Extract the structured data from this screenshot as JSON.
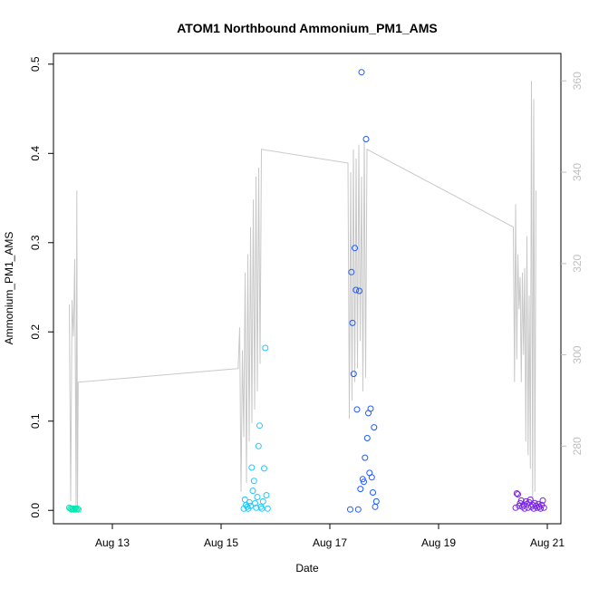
{
  "chart_data": {
    "type": "scatter",
    "title": "ATOM1 Northbound Ammonium_PM1_AMS",
    "xlabel": "Date",
    "ylabel": "Ammonium_PM1_AMS",
    "xlim": [
      "2016-08-11T22:00",
      "2016-08-21T06:00"
    ],
    "ylim": [
      -0.015,
      0.512
    ],
    "x_ticks": [
      {
        "label": "Aug 13",
        "date": "2016-08-13"
      },
      {
        "label": "Aug 15",
        "date": "2016-08-15"
      },
      {
        "label": "Aug 17",
        "date": "2016-08-17"
      },
      {
        "label": "Aug 19",
        "date": "2016-08-19"
      },
      {
        "label": "Aug 21",
        "date": "2016-08-21"
      }
    ],
    "y_ticks": [
      0.0,
      0.1,
      0.2,
      0.3,
      0.4,
      0.5
    ],
    "y_tick_labels": [
      "0.0",
      "0.1",
      "0.2",
      "0.3",
      "0.4",
      "0.5"
    ],
    "y2lim": [
      263,
      366
    ],
    "y2_ticks": [
      280,
      300,
      320,
      340,
      360
    ],
    "y2_tick_labels": [
      "280",
      "300",
      "320",
      "340",
      "360"
    ],
    "grid": false,
    "legend": "none",
    "series": [
      {
        "color": "#00e8b0",
        "points": [
          [
            "2016-08-12T05:00",
            0.003
          ],
          [
            "2016-08-12T05:30",
            0.002
          ],
          [
            "2016-08-12T06:00",
            0.001
          ],
          [
            "2016-08-12T06:30",
            0.002
          ],
          [
            "2016-08-12T07:00",
            0.001
          ],
          [
            "2016-08-12T07:30",
            0.002
          ],
          [
            "2016-08-12T08:00",
            0.001
          ],
          [
            "2016-08-12T08:30",
            0.002
          ],
          [
            "2016-08-12T09:00",
            0.001
          ]
        ]
      },
      {
        "color": "#1ec8ff",
        "points": [
          [
            "2016-08-15T10:00",
            0.002
          ],
          [
            "2016-08-15T10:30",
            0.012
          ],
          [
            "2016-08-15T11:00",
            0.006
          ],
          [
            "2016-08-15T11:30",
            0.004
          ],
          [
            "2016-08-15T12:00",
            0.002
          ],
          [
            "2016-08-15T12:30",
            0.009
          ],
          [
            "2016-08-15T13:00",
            0.005
          ],
          [
            "2016-08-15T13:30",
            0.048
          ],
          [
            "2016-08-15T14:00",
            0.022
          ],
          [
            "2016-08-15T14:30",
            0.033
          ],
          [
            "2016-08-15T15:00",
            0.008
          ],
          [
            "2016-08-15T15:30",
            0.003
          ],
          [
            "2016-08-15T16:00",
            0.015
          ],
          [
            "2016-08-15T16:30",
            0.072
          ],
          [
            "2016-08-15T17:00",
            0.095
          ],
          [
            "2016-08-15T17:30",
            0.004
          ],
          [
            "2016-08-15T18:00",
            0.002
          ],
          [
            "2016-08-15T18:30",
            0.01
          ],
          [
            "2016-08-15T19:00",
            0.047
          ],
          [
            "2016-08-15T19:30",
            0.182
          ],
          [
            "2016-08-15T20:00",
            0.017
          ],
          [
            "2016-08-15T20:30",
            0.002
          ]
        ]
      },
      {
        "color": "#1e5aff",
        "points": [
          [
            "2016-08-17T09:00",
            0.001
          ],
          [
            "2016-08-17T09:30",
            0.267
          ],
          [
            "2016-08-17T10:00",
            0.21
          ],
          [
            "2016-08-17T10:30",
            0.153
          ],
          [
            "2016-08-17T11:00",
            0.294
          ],
          [
            "2016-08-17T11:30",
            0.247
          ],
          [
            "2016-08-17T12:00",
            0.113
          ],
          [
            "2016-08-17T12:30",
            0.001
          ],
          [
            "2016-08-17T13:00",
            0.246
          ],
          [
            "2016-08-17T13:30",
            0.024
          ],
          [
            "2016-08-17T14:00",
            0.491
          ],
          [
            "2016-08-17T14:30",
            0.035
          ],
          [
            "2016-08-17T15:00",
            0.032
          ],
          [
            "2016-08-17T15:30",
            0.059
          ],
          [
            "2016-08-17T16:00",
            0.416
          ],
          [
            "2016-08-17T16:30",
            0.081
          ],
          [
            "2016-08-17T17:00",
            0.109
          ],
          [
            "2016-08-17T17:30",
            0.042
          ],
          [
            "2016-08-17T18:00",
            0.114
          ],
          [
            "2016-08-17T18:30",
            0.037
          ],
          [
            "2016-08-17T19:00",
            0.02
          ],
          [
            "2016-08-17T19:30",
            0.093
          ],
          [
            "2016-08-17T20:00",
            0.004
          ],
          [
            "2016-08-17T20:30",
            0.01
          ]
        ]
      },
      {
        "color": "#7a22e8",
        "points": [
          [
            "2016-08-20T10:00",
            0.003
          ],
          [
            "2016-08-20T10:30",
            0.019
          ],
          [
            "2016-08-20T11:00",
            0.018
          ],
          [
            "2016-08-20T11:30",
            0.005
          ],
          [
            "2016-08-20T12:00",
            0.008
          ],
          [
            "2016-08-20T12:30",
            0.011
          ],
          [
            "2016-08-20T13:00",
            0.004
          ],
          [
            "2016-08-20T13:30",
            0.006
          ],
          [
            "2016-08-20T14:00",
            0.002
          ],
          [
            "2016-08-20T14:30",
            0.01
          ],
          [
            "2016-08-20T15:00",
            0.007
          ],
          [
            "2016-08-20T15:30",
            0.003
          ],
          [
            "2016-08-20T16:00",
            0.009
          ],
          [
            "2016-08-20T16:30",
            0.012
          ],
          [
            "2016-08-20T17:00",
            0.004
          ],
          [
            "2016-08-20T17:30",
            0.006
          ],
          [
            "2016-08-20T18:00",
            0.002
          ],
          [
            "2016-08-20T18:30",
            0.008
          ],
          [
            "2016-08-20T19:00",
            0.005
          ],
          [
            "2016-08-20T19:30",
            0.003
          ],
          [
            "2016-08-20T20:00",
            0.007
          ],
          [
            "2016-08-20T20:30",
            0.004
          ],
          [
            "2016-08-20T21:00",
            0.002
          ],
          [
            "2016-08-20T21:30",
            0.006
          ],
          [
            "2016-08-20T22:00",
            0.011
          ],
          [
            "2016-08-20T22:30",
            0.003
          ]
        ]
      }
    ],
    "secondary_line": {
      "color": "#c8c8c8",
      "points": [
        [
          "2016-08-12T05:00",
          311
        ],
        [
          "2016-08-12T05:36",
          268
        ],
        [
          "2016-08-12T06:12",
          312
        ],
        [
          "2016-08-12T06:48",
          304
        ],
        [
          "2016-08-12T07:24",
          321
        ],
        [
          "2016-08-12T08:00",
          266
        ],
        [
          "2016-08-12T08:18",
          336
        ],
        [
          "2016-08-12T08:36",
          266
        ],
        [
          "2016-08-12T08:54",
          294
        ],
        [
          "2016-08-15T07:30",
          297
        ],
        [
          "2016-08-15T08:12",
          306
        ],
        [
          "2016-08-15T08:48",
          270
        ],
        [
          "2016-08-15T09:24",
          301
        ],
        [
          "2016-08-15T10:00",
          282
        ],
        [
          "2016-08-15T10:36",
          318
        ],
        [
          "2016-08-15T11:12",
          272
        ],
        [
          "2016-08-15T11:48",
          322
        ],
        [
          "2016-08-15T12:24",
          281
        ],
        [
          "2016-08-15T13:00",
          328
        ],
        [
          "2016-08-15T13:36",
          285
        ],
        [
          "2016-08-15T14:12",
          334
        ],
        [
          "2016-08-15T14:48",
          288
        ],
        [
          "2016-08-15T15:24",
          339
        ],
        [
          "2016-08-15T16:00",
          292
        ],
        [
          "2016-08-15T16:36",
          341
        ],
        [
          "2016-08-15T17:12",
          298
        ],
        [
          "2016-08-15T17:48",
          345
        ],
        [
          "2016-08-17T08:00",
          342
        ],
        [
          "2016-08-17T08:36",
          286
        ],
        [
          "2016-08-17T09:12",
          340
        ],
        [
          "2016-08-17T09:48",
          290
        ],
        [
          "2016-08-17T10:24",
          345
        ],
        [
          "2016-08-17T11:00",
          294
        ],
        [
          "2016-08-17T11:36",
          343
        ],
        [
          "2016-08-17T12:12",
          297
        ],
        [
          "2016-08-17T12:48",
          346
        ],
        [
          "2016-08-17T13:24",
          303
        ],
        [
          "2016-08-17T14:00",
          339
        ],
        [
          "2016-08-17T14:36",
          292
        ],
        [
          "2016-08-17T15:12",
          347
        ],
        [
          "2016-08-17T15:48",
          295
        ],
        [
          "2016-08-17T16:24",
          345
        ],
        [
          "2016-08-20T09:00",
          328
        ],
        [
          "2016-08-20T09:30",
          294
        ],
        [
          "2016-08-20T10:00",
          333
        ],
        [
          "2016-08-20T10:30",
          299
        ],
        [
          "2016-08-20T11:00",
          322
        ],
        [
          "2016-08-20T11:30",
          310
        ],
        [
          "2016-08-20T12:00",
          317
        ],
        [
          "2016-08-20T12:30",
          294
        ],
        [
          "2016-08-20T13:00",
          318
        ],
        [
          "2016-08-20T13:30",
          300
        ],
        [
          "2016-08-20T14:00",
          319
        ],
        [
          "2016-08-20T14:30",
          281
        ],
        [
          "2016-08-20T15:00",
          326
        ],
        [
          "2016-08-20T15:30",
          278
        ],
        [
          "2016-08-20T16:00",
          313
        ],
        [
          "2016-08-20T16:30",
          275
        ],
        [
          "2016-08-20T17:00",
          360
        ],
        [
          "2016-08-20T17:30",
          268
        ],
        [
          "2016-08-20T18:00",
          356
        ],
        [
          "2016-08-20T18:30",
          270
        ],
        [
          "2016-08-20T19:00",
          336
        ]
      ]
    }
  }
}
